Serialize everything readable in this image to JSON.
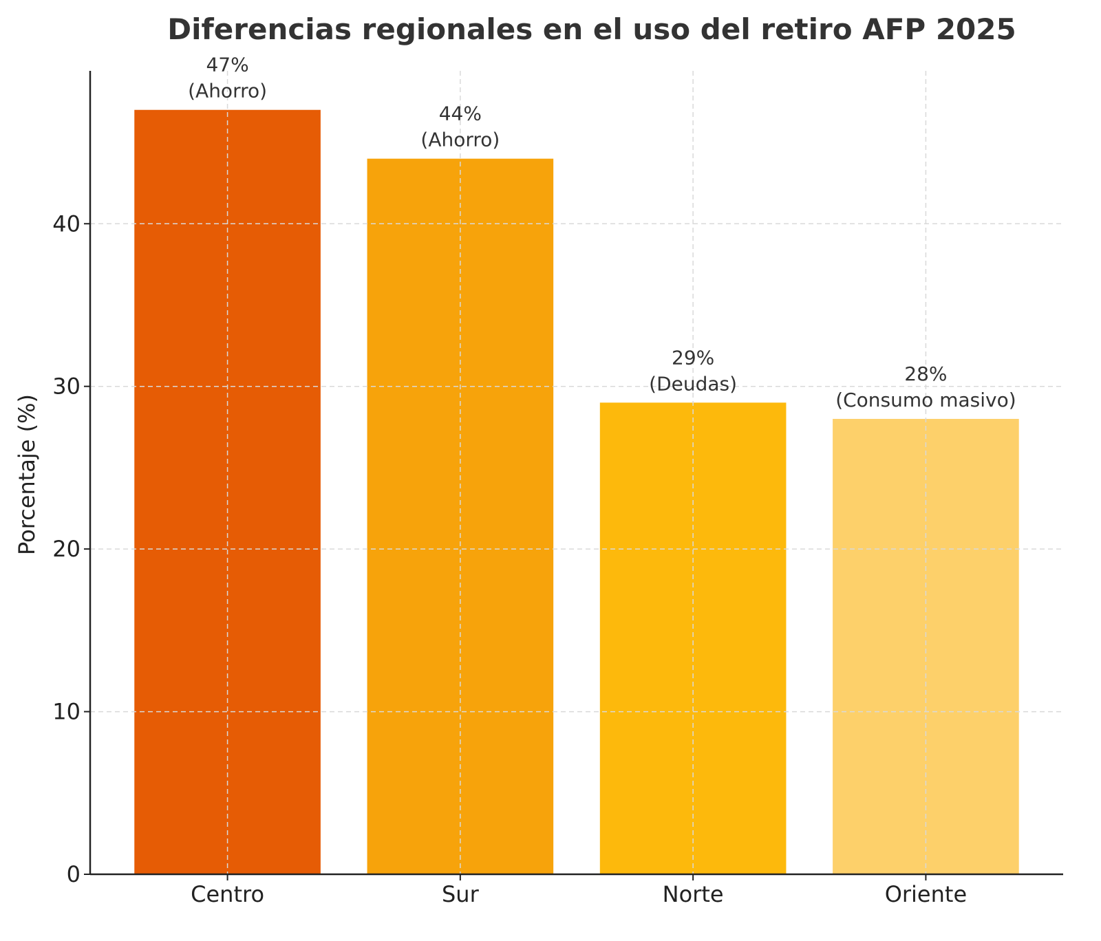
{
  "chart_data": {
    "type": "bar",
    "title": "Diferencias regionales en el uso del retiro AFP 2025",
    "xlabel": "",
    "ylabel": "Porcentaje (%)",
    "categories": [
      "Centro",
      "Sur",
      "Norte",
      "Oriente"
    ],
    "values": [
      47,
      44,
      29,
      28
    ],
    "value_labels": [
      "47%",
      "44%",
      "29%",
      "28%"
    ],
    "annotations": [
      "(Ahorro)",
      "(Ahorro)",
      "(Deudas)",
      "(Consumo masivo)"
    ],
    "colors": [
      "#E65C05",
      "#F7A30B",
      "#FDB90C",
      "#FDD06A"
    ],
    "ylim": [
      0,
      49.4
    ],
    "yticks": [
      0,
      10,
      20,
      30,
      40
    ],
    "grid": true,
    "legend": "none"
  }
}
